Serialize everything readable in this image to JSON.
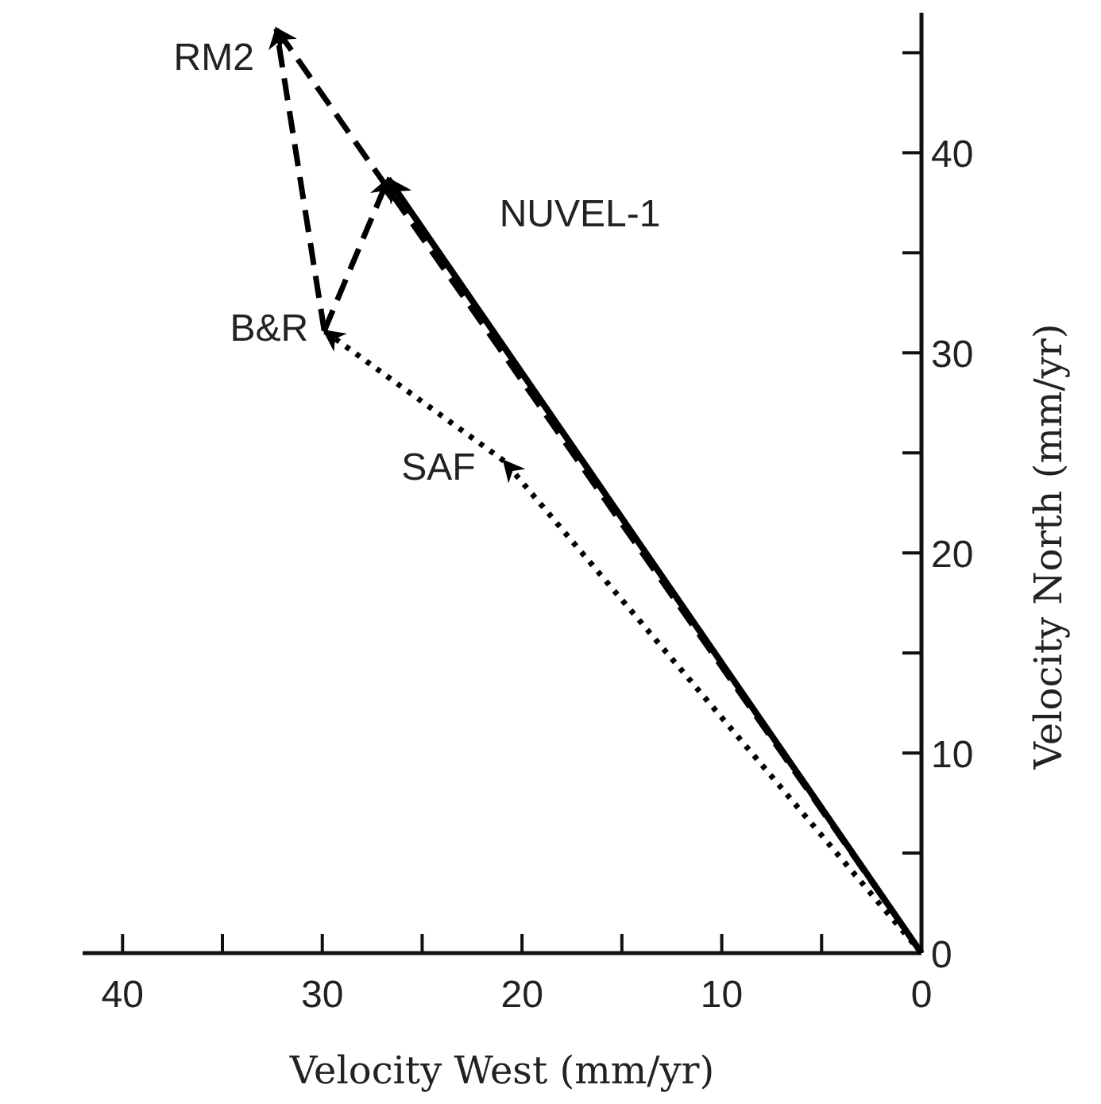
{
  "chart_data": {
    "type": "line",
    "xlabel": "Velocity West (mm/yr)",
    "ylabel": "Velocity North (mm/yr)",
    "xlim": [
      42,
      0
    ],
    "ylim": [
      0,
      47
    ],
    "xticks": [
      40,
      {
        "value": 35,
        "label": null
      },
      30,
      {
        "value": 25,
        "label": null
      },
      20,
      {
        "value": 15,
        "label": null
      },
      10,
      {
        "value": 5,
        "label": null
      },
      0
    ],
    "yticks": [
      0,
      {
        "value": 5,
        "label": null
      },
      10,
      {
        "value": 15,
        "label": null
      },
      20,
      {
        "value": 25,
        "label": null
      },
      30,
      {
        "value": 35,
        "label": null
      },
      40,
      {
        "value": 45,
        "label": null
      }
    ],
    "grid": false,
    "marker": "none",
    "series": [
      {
        "name": "NUVEL-1",
        "color": "#000000",
        "line_style": "solid",
        "x": [
          0,
          26.7
        ],
        "values": [
          0,
          38.7
        ]
      },
      {
        "name": "RM2",
        "color": "#000000",
        "line_style": "dashed",
        "x": [
          0,
          32.3
        ],
        "values": [
          0,
          46.2
        ]
      },
      {
        "name": "SAF",
        "color": "#000000",
        "line_style": "dotted",
        "x": [
          0,
          20.9
        ],
        "values": [
          0,
          24.6
        ]
      },
      {
        "name": "B&R",
        "color": "#000000",
        "line_style": "dotted",
        "x": [
          20.9,
          29.9
        ],
        "values": [
          24.6,
          31.1
        ]
      },
      {
        "color": "#000000",
        "line_style": "dashed",
        "x": [
          29.9,
          26.7
        ],
        "values": [
          31.1,
          38.7
        ]
      },
      {
        "color": "#000000",
        "line_style": "dashed",
        "x": [
          29.9,
          32.3
        ],
        "values": [
          31.1,
          46.2
        ]
      }
    ]
  }
}
